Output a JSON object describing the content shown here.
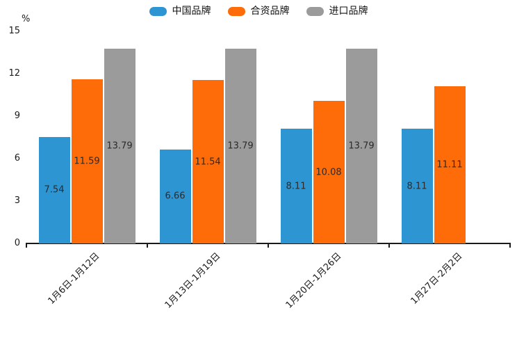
{
  "chart_data": {
    "type": "bar",
    "title": "",
    "unit_label": "%",
    "categories": [
      "1月6日-1月12日",
      "1月13日-1月19日",
      "1月20日-1月26日",
      "1月27日-2月2日"
    ],
    "series": [
      {
        "name": "中国品牌",
        "color": "#2E95D3",
        "values": [
          7.54,
          6.66,
          8.11,
          8.11
        ]
      },
      {
        "name": "合资品牌",
        "color": "#FD6C09",
        "values": [
          11.59,
          11.54,
          10.08,
          11.11
        ]
      },
      {
        "name": "进口品牌",
        "color": "#9B9B9B",
        "values": [
          13.79,
          13.79,
          13.79,
          null
        ]
      }
    ],
    "bar_value_labels": [
      "7.54",
      "11.59",
      "13.79",
      "6.66",
      "11.54",
      "13.79",
      "8.11",
      "10.08",
      "13.79",
      "8.11",
      "11.11"
    ],
    "ylabel": "",
    "xlabel": "",
    "ylim": [
      0,
      15
    ],
    "yticks": [
      0,
      3,
      6,
      9,
      12,
      15
    ],
    "grid": false,
    "legend_position": "top",
    "value_label_decimals": 2,
    "axis_color": "#1a1a1a"
  }
}
